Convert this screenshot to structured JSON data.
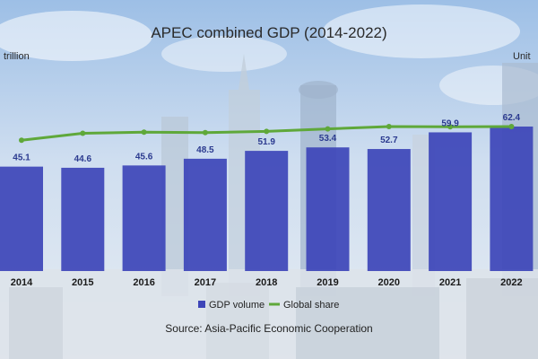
{
  "chart_data": {
    "type": "bar",
    "title": "APEC combined GDP (2014-2022)",
    "unit_left": "trillion",
    "unit_right": "Unit",
    "categories": [
      "2014",
      "2015",
      "2016",
      "2017",
      "2018",
      "2019",
      "2020",
      "2021",
      "2022"
    ],
    "series": [
      {
        "name": "GDP volume",
        "type": "bar",
        "color": "#3d45b8",
        "values": [
          45.1,
          44.6,
          45.6,
          48.5,
          51.9,
          53.4,
          52.7,
          59.9,
          62.4
        ],
        "labels": [
          "45.1",
          "44.6",
          "45.6",
          "48.5",
          "51.9",
          "53.4",
          "52.7",
          "59.9",
          "62.4"
        ]
      },
      {
        "name": "Global share",
        "type": "line",
        "color": "#5fa83a",
        "values": [
          56.5,
          59.5,
          60.0,
          59.8,
          60.3,
          61.4,
          62.4,
          62.3,
          62.4
        ]
      }
    ],
    "ylim": [
      0,
      70
    ],
    "grid": false,
    "legend": "bottom-center",
    "source": "Source: Asia-Pacific Economic Cooperation"
  }
}
